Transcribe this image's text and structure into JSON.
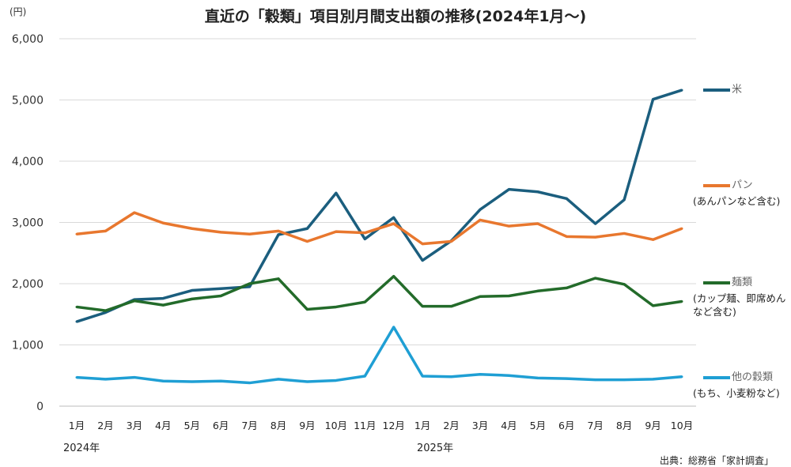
{
  "chart_data": {
    "type": "line",
    "title": "直近の「穀類」項目別月間支出額の推移(2024年1月〜)",
    "ylabel": "(円)",
    "ylim": [
      0,
      6000
    ],
    "yticks": [
      "0",
      "1,000",
      "2,000",
      "3,000",
      "4,000",
      "5,000",
      "6,000"
    ],
    "ytick_values": [
      0,
      1000,
      2000,
      3000,
      4000,
      5000,
      6000
    ],
    "grid": true,
    "categories": [
      "1月",
      "2月",
      "3月",
      "4月",
      "5月",
      "6月",
      "7月",
      "8月",
      "9月",
      "10月",
      "11月",
      "12月",
      "1月",
      "2月",
      "3月",
      "4月",
      "5月",
      "6月",
      "7月",
      "8月",
      "9月",
      "10月"
    ],
    "year_labels": [
      "2024年",
      "2025年"
    ],
    "legend_placement": "right",
    "series": [
      {
        "name": "米",
        "note": "",
        "color": "#1b5e7e",
        "values": [
          1380,
          1530,
          1740,
          1760,
          1890,
          1920,
          1950,
          2800,
          2900,
          3480,
          2730,
          3080,
          2380,
          2700,
          3210,
          3540,
          3500,
          3390,
          2980,
          3370,
          5010,
          5160
        ]
      },
      {
        "name": "パン",
        "note": "(あんパンなど含む)",
        "color": "#e8772e",
        "values": [
          2810,
          2860,
          3160,
          2990,
          2900,
          2840,
          2810,
          2860,
          2690,
          2850,
          2830,
          2980,
          2650,
          2690,
          3040,
          2940,
          2980,
          2770,
          2760,
          2820,
          2720,
          2900
        ]
      },
      {
        "name": "麺類",
        "note": "(カップ麺、即席めん など含む)",
        "color": "#236b2a",
        "values": [
          1620,
          1560,
          1720,
          1650,
          1750,
          1800,
          2000,
          2080,
          1580,
          1620,
          1700,
          2120,
          1630,
          1630,
          1790,
          1800,
          1880,
          1930,
          2090,
          1990,
          1640,
          1710
        ]
      },
      {
        "name": "他の穀類",
        "note": "(もち、小麦粉など)",
        "color": "#1f9fd4",
        "values": [
          470,
          440,
          470,
          410,
          400,
          410,
          380,
          440,
          400,
          420,
          490,
          1290,
          490,
          480,
          520,
          500,
          460,
          450,
          430,
          430,
          440,
          480
        ]
      }
    ]
  },
  "source": "出典：総務省「家計調査」"
}
